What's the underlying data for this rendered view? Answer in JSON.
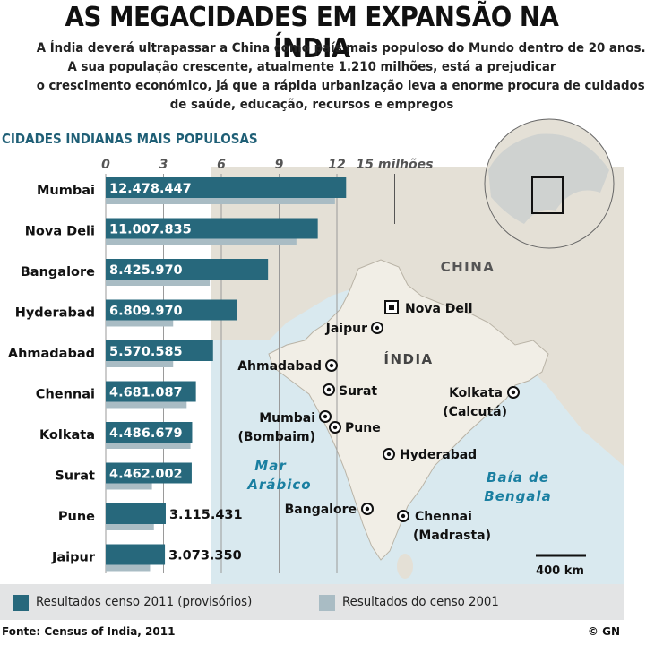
{
  "header": {
    "title": "AS MEGACIDADES EM EXPANSÃO NA ÍNDIA",
    "subtitle_lines": [
      "A Índia deverá ultrapassar a China como país mais populoso do Mundo dentro de 20 anos.",
      "A sua população crescente, atualmente 1.210 milhões, está a prejudicar",
      "o crescimento económico, já que a rápida urbanização leva a enorme procura de cuidados",
      "de saúde, educação, recursos e empregos"
    ]
  },
  "chart_data": {
    "type": "bar",
    "orientation": "horizontal",
    "title": "CIDADES INDIANAS MAIS POPULOSAS",
    "axis_ticks": [
      "0",
      "3",
      "6",
      "9",
      "12"
    ],
    "axis_unit_label": "15 milhões",
    "xlim": [
      0,
      15
    ],
    "categories": [
      "Mumbai",
      "Nova Deli",
      "Bangalore",
      "Hyderabad",
      "Ahmadabad",
      "Chennai",
      "Kolkata",
      "Surat",
      "Pune",
      "Jaipur"
    ],
    "series": [
      {
        "name": "Resultados censo 2011 (provisórios)",
        "color": "#27687c",
        "values": [
          12.478447,
          11.007835,
          8.42597,
          6.80997,
          5.570585,
          4.681087,
          4.486679,
          4.462002,
          3.115431,
          3.07335
        ],
        "labels": [
          "12.478.447",
          "11.007.835",
          "8.425.970",
          "6.809.970",
          "5.570.585",
          "4.681.087",
          "4.486.679",
          "4.462.002",
          "3.115.431",
          "3.073.350"
        ]
      },
      {
        "name": "Resultados do censo 2001",
        "color": "#a9bcc4",
        "values": [
          11.9,
          9.9,
          5.4,
          3.5,
          3.5,
          4.2,
          4.4,
          2.4,
          2.5,
          2.3
        ]
      }
    ],
    "legend_position": "bottom"
  },
  "map": {
    "country_label": "ÍNDIA",
    "neighbor_label": "CHINA",
    "sea_labels": [
      "Mar",
      "Arábico",
      "Baía de",
      "Bengala"
    ],
    "cities": [
      {
        "label": "Nova Deli",
        "capital": true
      },
      {
        "label": "Jaipur"
      },
      {
        "label": "Ahmadabad"
      },
      {
        "label": "Surat"
      },
      {
        "label": "Mumbai",
        "label2": "(Bombaim)"
      },
      {
        "label": "Pune"
      },
      {
        "label": "Kolkata",
        "label2": "(Calcutá)"
      },
      {
        "label": "Hyderabad"
      },
      {
        "label": "Bangalore"
      },
      {
        "label": "Chennai",
        "label2": "(Madrasta)"
      }
    ],
    "scale_label": "400 km"
  },
  "legend": {
    "item_2011": "Resultados censo 2011 (provisórios)",
    "item_2001": "Resultados do censo 2001"
  },
  "footer": {
    "source": "Fonte: Census of India, 2011",
    "credit": "© GN"
  },
  "colors": {
    "bar_2011": "#27687c",
    "bar_2001": "#a9bcc4",
    "title_blue": "#1f5f76",
    "sea": "#d9e9ef",
    "land": "#e4e0d6",
    "india": "#f1eee6"
  }
}
